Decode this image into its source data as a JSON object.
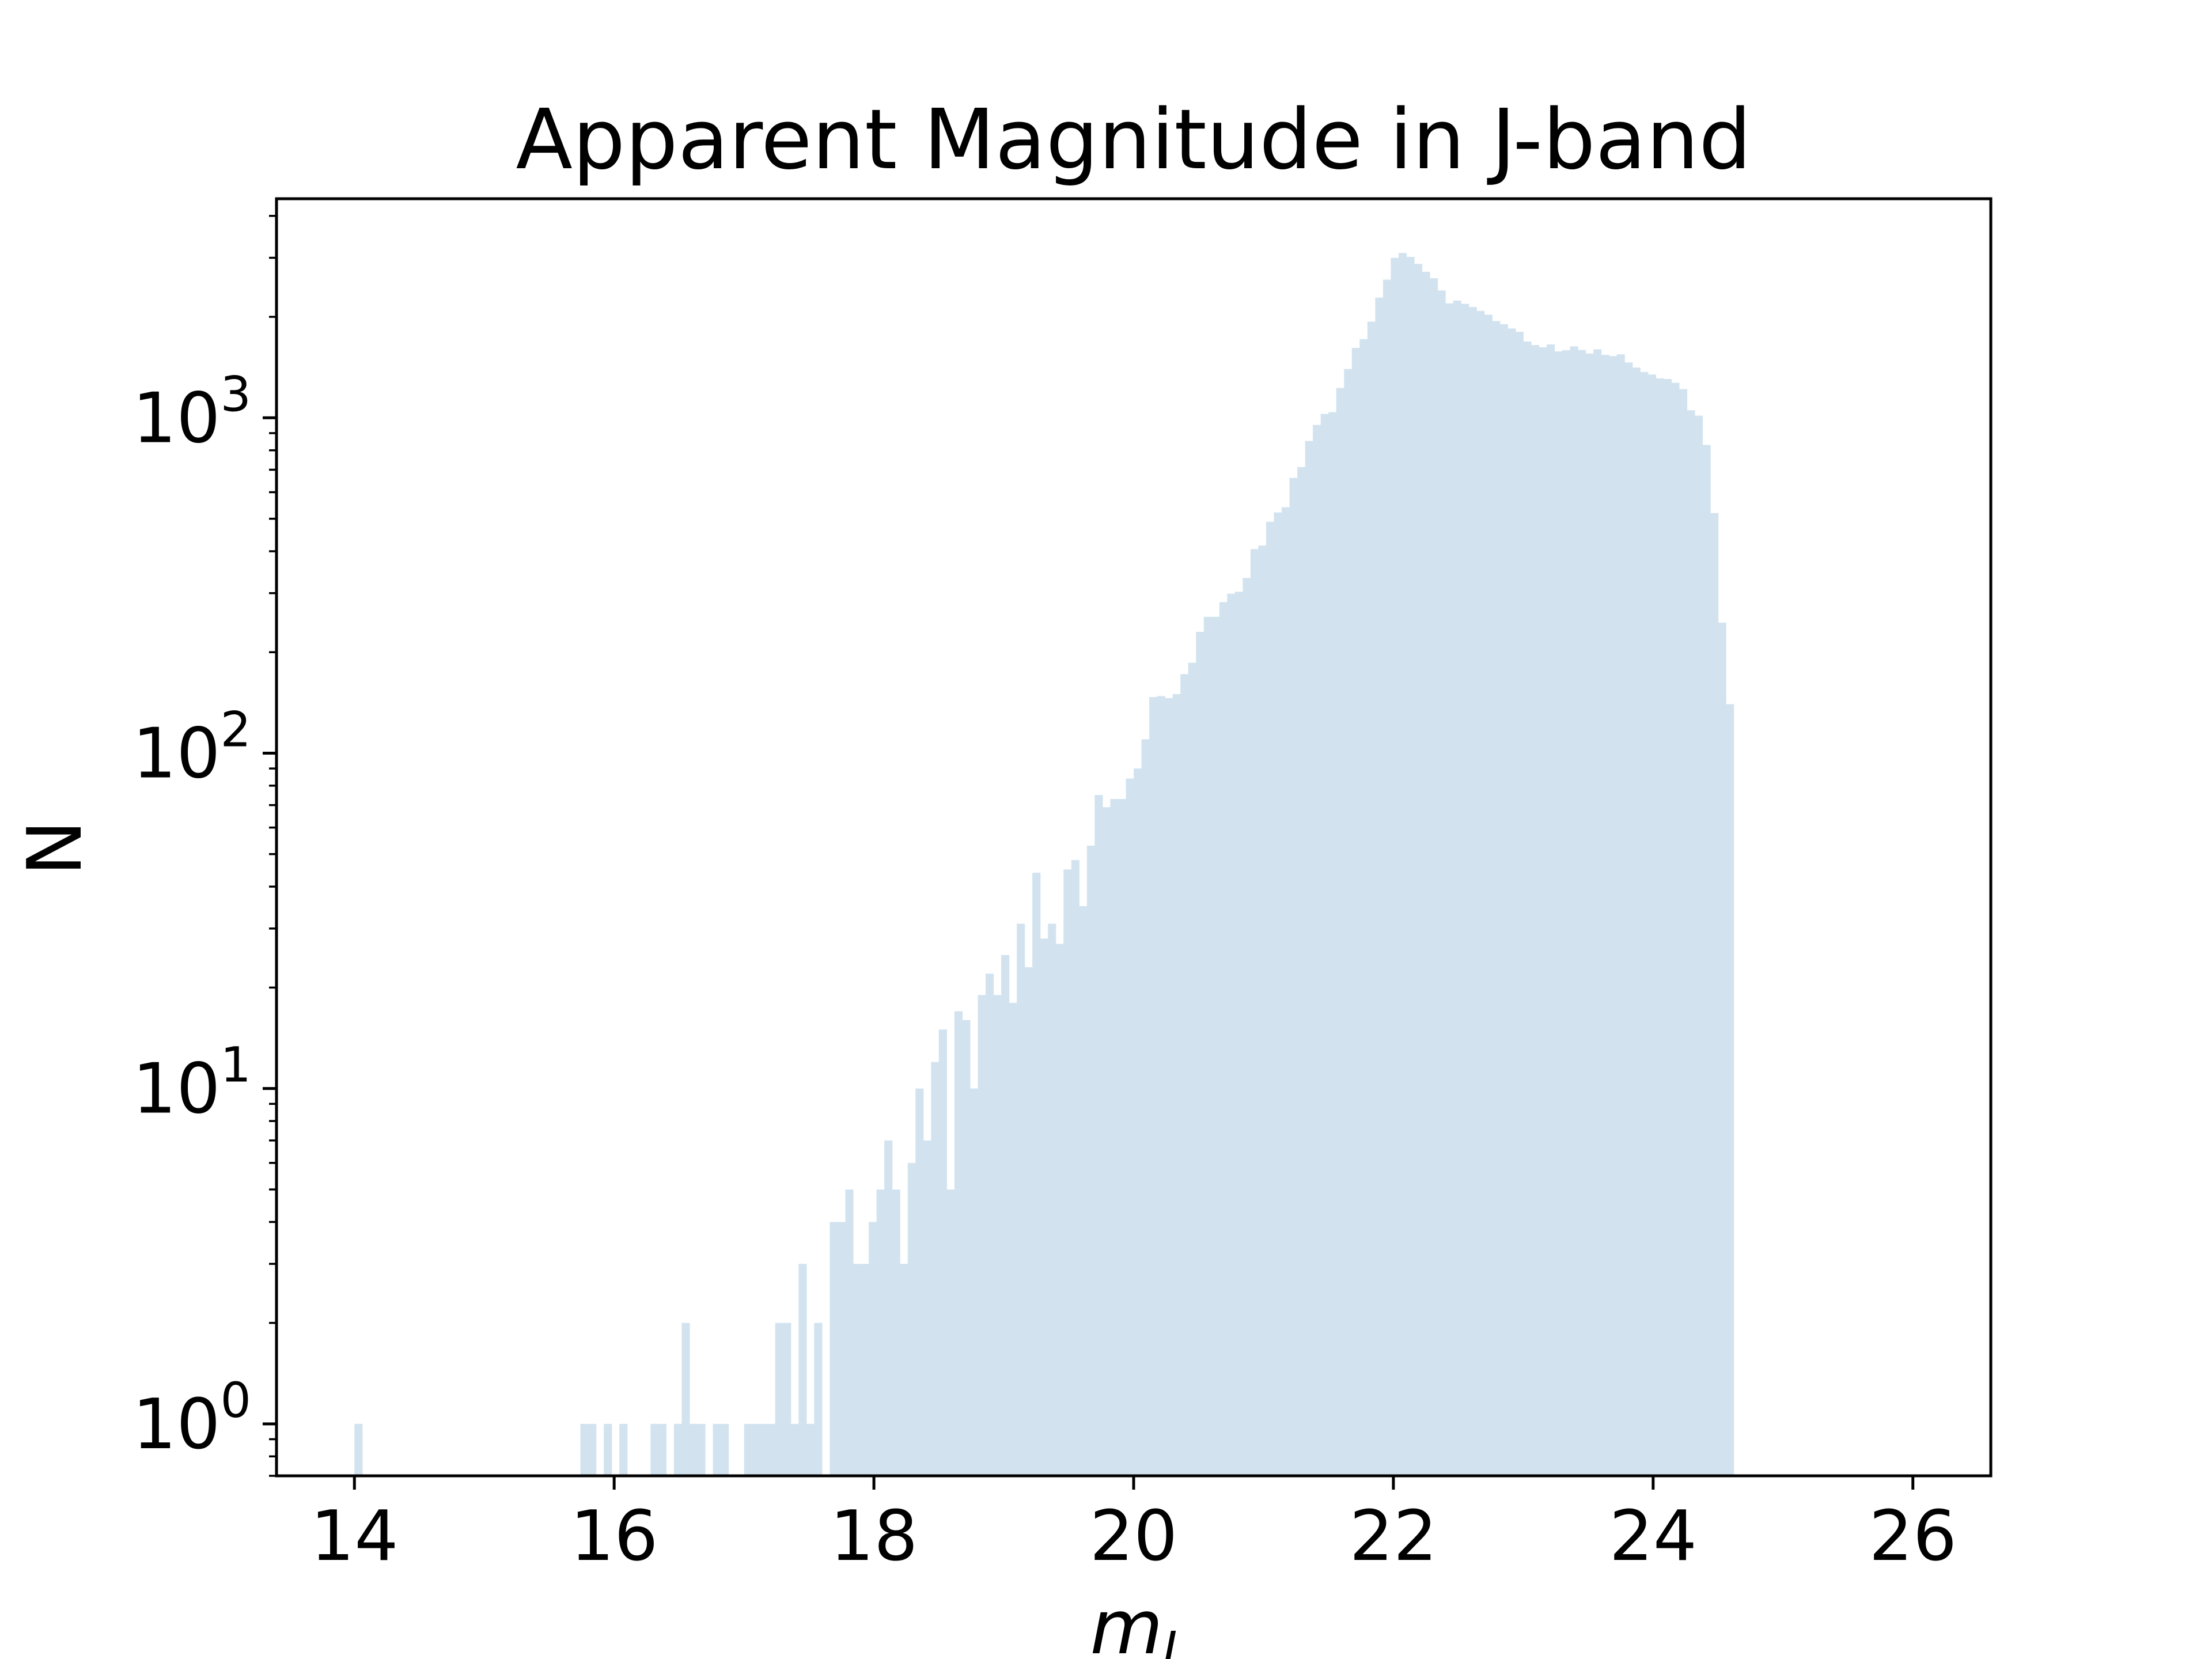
{
  "chart_data": {
    "type": "bar",
    "title": "Apparent Magnitude in J-band",
    "xlabel_base": "m",
    "xlabel_sub": "J",
    "ylabel": "N",
    "yscale": "log",
    "xlim": [
      13.4,
      26.6
    ],
    "ylim": [
      0.7,
      4500
    ],
    "xticks": [
      {
        "value": 14,
        "label": "14"
      },
      {
        "value": 16,
        "label": "16"
      },
      {
        "value": 18,
        "label": "18"
      },
      {
        "value": 20,
        "label": "20"
      },
      {
        "value": 22,
        "label": "22"
      },
      {
        "value": 24,
        "label": "24"
      },
      {
        "value": 26,
        "label": "26"
      }
    ],
    "yticks": [
      {
        "value": 1,
        "base": "10",
        "exp": "0"
      },
      {
        "value": 10,
        "base": "10",
        "exp": "1"
      },
      {
        "value": 100,
        "base": "10",
        "exp": "2"
      },
      {
        "value": 1000,
        "base": "10",
        "exp": "3"
      }
    ],
    "bar_color": "#d2e3ef",
    "bin_start": 14.0,
    "bin_width": 0.06,
    "counts": [
      1,
      0,
      0,
      0,
      0,
      0,
      0,
      0,
      0,
      0,
      0,
      0,
      0,
      0,
      0,
      0,
      0,
      0,
      0,
      0,
      0,
      0,
      0,
      0,
      0,
      0,
      0,
      0,
      0,
      1,
      1,
      0,
      1,
      0,
      1,
      0,
      0,
      0,
      1,
      1,
      0,
      1,
      2,
      1,
      1,
      0,
      1,
      1,
      0,
      0,
      1,
      1,
      1,
      1,
      2,
      2,
      1,
      3,
      1,
      2,
      0,
      4,
      4,
      5,
      3,
      3,
      4,
      5,
      7,
      5,
      3,
      6,
      10,
      7,
      12,
      15,
      5,
      17,
      16,
      10,
      19,
      22,
      19,
      25,
      18,
      31,
      23,
      44,
      28,
      31,
      27,
      45,
      48,
      35,
      53,
      75,
      69,
      73,
      73,
      84,
      90,
      110,
      147,
      148,
      146,
      150,
      172,
      186,
      230,
      255,
      255,
      282,
      299,
      303,
      333,
      406,
      416,
      490,
      522,
      541,
      662,
      713,
      853,
      952,
      1027,
      1040,
      1227,
      1398,
      1616,
      1717,
      1935,
      2282,
      2582,
      3000,
      3100,
      3018,
      2876,
      2724,
      2607,
      2397,
      2194,
      2236,
      2187,
      2140,
      2084,
      2030,
      1943,
      1902,
      1846,
      1804,
      1688,
      1648,
      1622,
      1655,
      1578,
      1591,
      1633,
      1593,
      1555,
      1600,
      1540,
      1528,
      1546,
      1462,
      1412,
      1370,
      1346,
      1311,
      1305,
      1272,
      1218,
      1053,
      1015,
      830,
      520,
      245,
      140
    ]
  }
}
